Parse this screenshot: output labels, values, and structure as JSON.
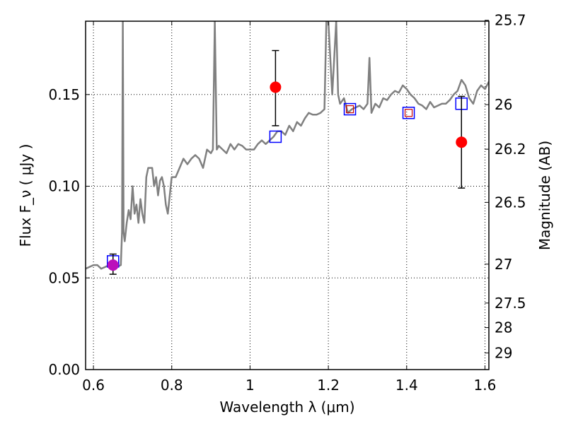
{
  "chart_data": {
    "type": "scatter",
    "title": "",
    "xlabel": "Wavelength  λ (μm)",
    "ylabel": "Flux  F_ν  ( μJy )",
    "y2label": "Magnitude (AB)",
    "xlim": [
      0.58,
      1.61
    ],
    "ylim": [
      0.0,
      0.19
    ],
    "x_ticks": [
      0.6,
      0.8,
      1.0,
      1.2,
      1.4,
      1.6
    ],
    "x_tick_labels": [
      "0.6",
      "0.8",
      "1",
      "1.2",
      "1.4",
      "1.6"
    ],
    "y_ticks": [
      0.0,
      0.05,
      0.1,
      0.15
    ],
    "y_tick_labels": [
      "0.00",
      "0.05",
      "0.10",
      "0.15"
    ],
    "y2_ticks": [
      {
        "label": "25.7",
        "flux": 0.1905
      },
      {
        "label": "26",
        "flux": 0.1445
      },
      {
        "label": "26.2",
        "flux": 0.1202
      },
      {
        "label": "26.5",
        "flux": 0.0912
      },
      {
        "label": "27",
        "flux": 0.0575
      },
      {
        "label": "27.5",
        "flux": 0.0363
      },
      {
        "label": "28",
        "flux": 0.0229
      },
      {
        "label": "29",
        "flux": 0.0091
      }
    ],
    "grid": true,
    "series": [
      {
        "kind": "line",
        "color": "#808080",
        "x": [
          0.58,
          0.6,
          0.61,
          0.62,
          0.63,
          0.64,
          0.65,
          0.66,
          0.67,
          0.673,
          0.675,
          0.677,
          0.68,
          0.685,
          0.69,
          0.695,
          0.7,
          0.705,
          0.71,
          0.715,
          0.72,
          0.725,
          0.73,
          0.735,
          0.74,
          0.745,
          0.75,
          0.755,
          0.76,
          0.765,
          0.77,
          0.775,
          0.78,
          0.785,
          0.79,
          0.8,
          0.81,
          0.82,
          0.83,
          0.84,
          0.85,
          0.86,
          0.87,
          0.88,
          0.89,
          0.9,
          0.905,
          0.91,
          0.915,
          0.92,
          0.93,
          0.94,
          0.95,
          0.96,
          0.97,
          0.98,
          0.99,
          1.0,
          1.01,
          1.02,
          1.03,
          1.04,
          1.05,
          1.06,
          1.07,
          1.08,
          1.09,
          1.1,
          1.11,
          1.12,
          1.13,
          1.14,
          1.15,
          1.16,
          1.17,
          1.18,
          1.19,
          1.195,
          1.2,
          1.21,
          1.22,
          1.225,
          1.23,
          1.24,
          1.25,
          1.26,
          1.27,
          1.28,
          1.29,
          1.3,
          1.305,
          1.31,
          1.32,
          1.33,
          1.34,
          1.35,
          1.36,
          1.37,
          1.38,
          1.39,
          1.4,
          1.41,
          1.42,
          1.43,
          1.44,
          1.45,
          1.46,
          1.47,
          1.48,
          1.49,
          1.5,
          1.51,
          1.52,
          1.53,
          1.54,
          1.55,
          1.56,
          1.57,
          1.58,
          1.59,
          1.6,
          1.61
        ],
        "y": [
          0.055,
          0.057,
          0.057,
          0.055,
          0.056,
          0.057,
          0.058,
          0.056,
          0.057,
          0.075,
          0.19,
          0.075,
          0.07,
          0.08,
          0.087,
          0.082,
          0.1,
          0.085,
          0.09,
          0.08,
          0.093,
          0.085,
          0.08,
          0.105,
          0.11,
          0.11,
          0.11,
          0.1,
          0.105,
          0.095,
          0.103,
          0.105,
          0.1,
          0.09,
          0.085,
          0.105,
          0.105,
          0.11,
          0.115,
          0.112,
          0.115,
          0.117,
          0.115,
          0.11,
          0.12,
          0.118,
          0.12,
          0.19,
          0.12,
          0.122,
          0.12,
          0.118,
          0.123,
          0.12,
          0.123,
          0.122,
          0.12,
          0.12,
          0.12,
          0.123,
          0.125,
          0.123,
          0.125,
          0.127,
          0.13,
          0.13,
          0.128,
          0.133,
          0.13,
          0.135,
          0.133,
          0.137,
          0.14,
          0.139,
          0.139,
          0.14,
          0.142,
          0.19,
          0.19,
          0.15,
          0.19,
          0.15,
          0.145,
          0.148,
          0.14,
          0.142,
          0.143,
          0.144,
          0.142,
          0.145,
          0.17,
          0.14,
          0.145,
          0.143,
          0.148,
          0.147,
          0.15,
          0.152,
          0.151,
          0.155,
          0.153,
          0.15,
          0.148,
          0.145,
          0.144,
          0.142,
          0.146,
          0.143,
          0.144,
          0.145,
          0.145,
          0.147,
          0.15,
          0.152,
          0.158,
          0.155,
          0.148,
          0.145,
          0.152,
          0.155,
          0.153,
          0.157
        ]
      },
      {
        "kind": "blue-squares",
        "color": "#0000ff",
        "x": [
          0.65,
          1.065,
          1.255,
          1.405,
          1.54
        ],
        "y": [
          0.059,
          0.127,
          0.142,
          0.14,
          0.145
        ]
      },
      {
        "kind": "red-squares",
        "color": "#cc0000",
        "x": [
          1.255,
          1.405
        ],
        "y": [
          0.142,
          0.14
        ]
      },
      {
        "kind": "red-points",
        "color": "#ff0000",
        "x": [
          1.065,
          1.54
        ],
        "y": [
          0.154,
          0.124
        ],
        "yerr_low": [
          0.133,
          0.099
        ],
        "yerr_high": [
          0.174,
          0.149
        ]
      },
      {
        "kind": "magenta-points",
        "color": "#bb11bb",
        "x": [
          0.65
        ],
        "y": [
          0.057
        ],
        "yerr_low": [
          0.052
        ],
        "yerr_high": [
          0.063
        ]
      }
    ]
  }
}
